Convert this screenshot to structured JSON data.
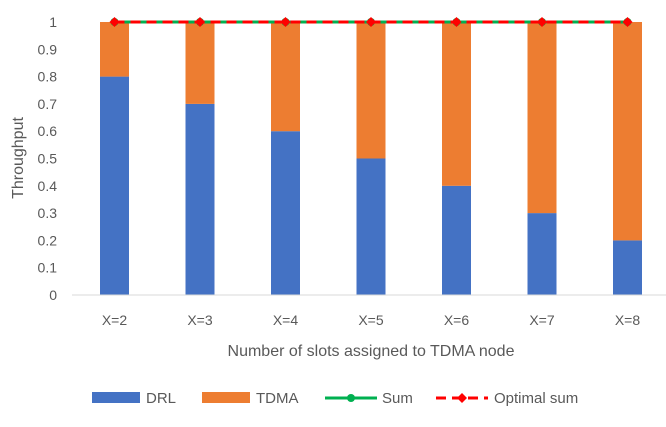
{
  "chart_data": {
    "type": "bar",
    "stacked": true,
    "title": "",
    "xlabel": "Number  of slots assigned to TDMA node",
    "ylabel": "Throughput",
    "categories": [
      "X=2",
      "X=3",
      "X=4",
      "X=5",
      "X=6",
      "X=7",
      "X=8"
    ],
    "ylim": [
      0,
      1
    ],
    "yticks": [
      "0",
      "0.1",
      "0.2",
      "0.3",
      "0.4",
      "0.5",
      "0.6",
      "0.7",
      "0.8",
      "0.9",
      "1"
    ],
    "grid": false,
    "legend_position": "bottom",
    "series": [
      {
        "name": "DRL",
        "kind": "bar",
        "color": "#4472C4",
        "values": [
          0.8,
          0.7,
          0.6,
          0.5,
          0.4,
          0.3,
          0.2
        ]
      },
      {
        "name": "TDMA",
        "kind": "bar",
        "color": "#ED7D31",
        "values": [
          0.2,
          0.3,
          0.4,
          0.5,
          0.6,
          0.7,
          0.8
        ]
      },
      {
        "name": "Sum",
        "kind": "line",
        "color": "#00B050",
        "marker": "circle",
        "values": [
          1,
          1,
          1,
          1,
          1,
          1,
          1
        ]
      },
      {
        "name": "Optimal sum",
        "kind": "line",
        "color": "#FF0000",
        "marker": "diamond",
        "dashed": true,
        "values": [
          1,
          1,
          1,
          1,
          1,
          1,
          1
        ]
      }
    ]
  }
}
